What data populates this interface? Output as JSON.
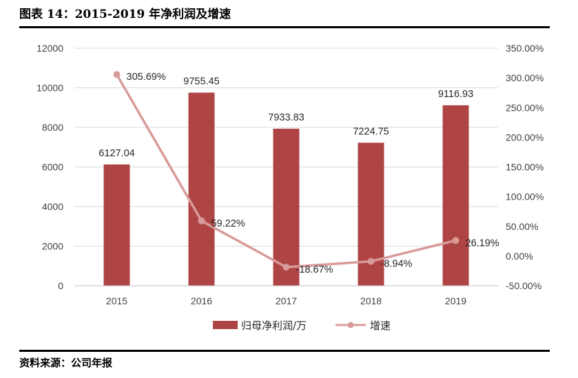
{
  "header": {
    "title": "图表 14：2015-2019 年净利润及增速"
  },
  "footer": {
    "source": "资料来源：公司年报"
  },
  "chart_data": {
    "type": "bar",
    "categories": [
      "2015",
      "2016",
      "2017",
      "2018",
      "2019"
    ],
    "series": [
      {
        "name": "归母净利润/万",
        "type": "bar",
        "axis": "left",
        "values": [
          6127.04,
          9755.45,
          7933.83,
          7224.75,
          9116.93
        ],
        "labels": [
          "6127.04",
          "9755.45",
          "7933.83",
          "7224.75",
          "9116.93"
        ],
        "color": "#ae4544"
      },
      {
        "name": "增速",
        "type": "line",
        "axis": "right",
        "values": [
          305.69,
          59.22,
          -18.67,
          -8.94,
          26.19
        ],
        "labels": [
          "305.69%",
          "59.22%",
          "-18.67%",
          "-8.94%",
          "26.19%"
        ],
        "color": "#d89b99"
      }
    ],
    "y_left": {
      "min": 0,
      "max": 12000,
      "step": 2000,
      "ticks": [
        "0",
        "2000",
        "4000",
        "6000",
        "8000",
        "10000",
        "12000"
      ]
    },
    "y_right": {
      "min": -50,
      "max": 350,
      "step": 50,
      "ticks": [
        "-50.00%",
        "0.00%",
        "50.00%",
        "100.00%",
        "150.00%",
        "200.00%",
        "250.00%",
        "300.00%",
        "350.00%"
      ]
    },
    "grid": true,
    "legend": "bottom"
  }
}
